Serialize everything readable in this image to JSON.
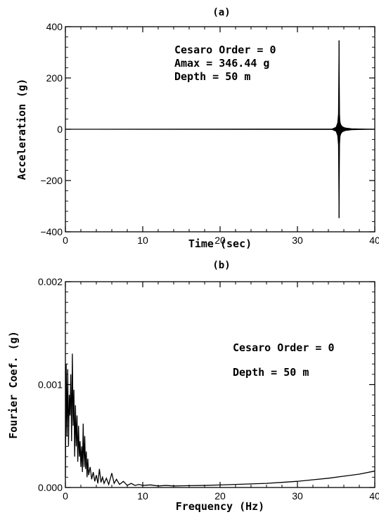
{
  "chart_data": [
    {
      "type": "line",
      "panel_label": "(a)",
      "xlabel": "Time (sec)",
      "ylabel": "Acceleration (g)",
      "xlim": [
        0,
        40
      ],
      "ylim": [
        -400,
        400
      ],
      "x_ticks": [
        0,
        10,
        20,
        30,
        40
      ],
      "y_ticks": [
        -400,
        -200,
        0,
        200,
        400
      ],
      "x_tick_labels": [
        "0",
        "10",
        "20",
        "30",
        "40"
      ],
      "y_tick_labels": [
        "−400",
        "−200",
        "0",
        "200",
        "400"
      ],
      "grid": false,
      "annotations": [
        "Cesaro Order = 0",
        "Amax = 346.44 g",
        "Depth = 50 m"
      ],
      "series": [
        {
          "x": [
            0,
            34.5,
            35.0,
            35.2,
            35.3,
            35.38,
            35.45,
            35.5,
            35.6,
            35.8,
            36.2,
            37,
            40
          ],
          "y_upper": [
            0,
            1,
            8,
            25,
            60,
            346.44,
            60,
            30,
            18,
            10,
            5,
            2,
            0
          ],
          "y_lower": [
            0,
            -1,
            -8,
            -25,
            -60,
            -346.44,
            -60,
            -30,
            -18,
            -10,
            -5,
            -2,
            0
          ]
        }
      ]
    },
    {
      "type": "line",
      "panel_label": "(b)",
      "xlabel": "Frequency (Hz)",
      "ylabel": "Fourier Coef. (g)",
      "xlim": [
        0,
        40
      ],
      "ylim": [
        0,
        0.002
      ],
      "x_ticks": [
        0,
        10,
        20,
        30,
        40
      ],
      "y_ticks": [
        0,
        0.001,
        0.002
      ],
      "x_tick_labels": [
        "0",
        "10",
        "20",
        "30",
        "40"
      ],
      "y_tick_labels": [
        "0.000",
        "0.001",
        "0.002"
      ],
      "grid": false,
      "annotations": [
        "Cesaro Order = 0",
        "Depth = 50 m"
      ],
      "series": [
        {
          "x": [
            0,
            0.1,
            0.2,
            0.3,
            0.4,
            0.5,
            0.6,
            0.7,
            0.8,
            0.9,
            1.0,
            1.1,
            1.2,
            1.3,
            1.4,
            1.5,
            1.6,
            1.7,
            1.8,
            1.9,
            2.0,
            2.1,
            2.2,
            2.3,
            2.4,
            2.5,
            2.6,
            2.7,
            2.8,
            2.9,
            3.0,
            3.2,
            3.4,
            3.6,
            3.8,
            4.0,
            4.2,
            4.4,
            4.6,
            4.8,
            5.0,
            5.3,
            5.6,
            6.0,
            6.3,
            6.6,
            7.0,
            7.5,
            8.0,
            8.5,
            9.0,
            9.5,
            10,
            11,
            12,
            13,
            14,
            16,
            18,
            20,
            22,
            24,
            26,
            28,
            30,
            32,
            34,
            36,
            38,
            40
          ],
          "y": [
            0.0001,
            0.0012,
            0.0005,
            0.00115,
            0.0004,
            0.0009,
            0.0007,
            0.0011,
            0.00045,
            0.0013,
            0.0006,
            0.00095,
            0.0003,
            0.0008,
            0.0004,
            0.0007,
            0.00025,
            0.0006,
            0.0003,
            0.00045,
            0.0002,
            0.0004,
            0.00015,
            0.00062,
            0.0002,
            0.0005,
            0.00018,
            0.00035,
            0.0001,
            0.00028,
            0.00012,
            0.0002,
            8e-05,
            0.00015,
            6e-05,
            0.00012,
            4e-05,
            0.00018,
            5e-05,
            0.0001,
            4e-05,
            9e-05,
            3e-05,
            0.00014,
            4e-05,
            8e-05,
            3e-05,
            6e-05,
            2e-05,
            4e-05,
            2e-05,
            3e-05,
            2e-05,
            2.5e-05,
            1.5e-05,
            2e-05,
            1.5e-05,
            1.8e-05,
            2e-05,
            2.5e-05,
            3e-05,
            3.5e-05,
            4e-05,
            5e-05,
            6e-05,
            7.5e-05,
            9e-05,
            0.00011,
            0.00013,
            0.00016
          ]
        }
      ]
    }
  ]
}
